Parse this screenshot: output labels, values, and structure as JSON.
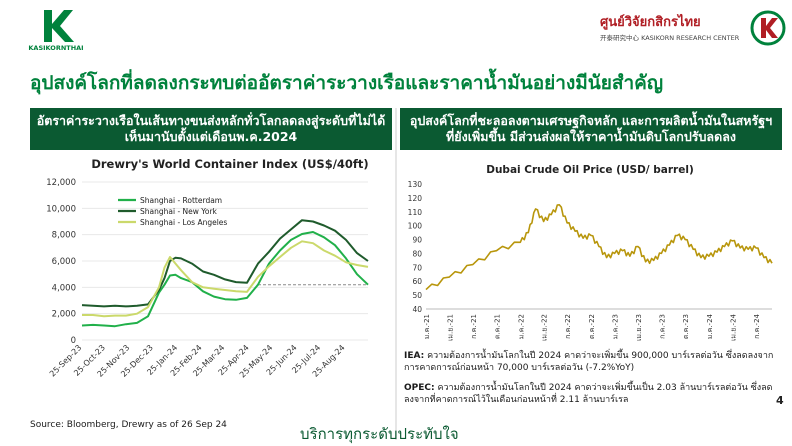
{
  "header": {
    "left_logo_text": "KASIKORNTHAI",
    "right_logo_title": "ศูนย์วิจัยกสิกรไทย",
    "right_logo_subtitle": "开泰研究中心 KASIKORN RESEARCH CENTER"
  },
  "slide": {
    "title": "อุปสงค์โลกที่ลดลงกระทบต่ออัตราค่าระวางเรือและราคาน้ำมันอย่างมีนัยสำคัญ",
    "left_header": "อัตราค่าระวางเรือในเส้นทางขนส่งหลักทั่วโลกลดลงสู่ระดับที่ไม่ได้เห็นมานับตั้งแต่เดือนพ.ค.2024",
    "right_header": "อุปสงค์โลกที่ชะลอลงตามเศรษฐกิจหลัก และการผลิตน้ำมันในสหรัฐฯ ที่ยังเพิ่มขึ้น มีส่วนส่งผลให้ราคาน้ำมันดิบโลกปรับลดลง",
    "iea_label": "IEA:",
    "iea_text": "ความต้องการน้ำมันโลกในปี 2024 คาดว่าจะเพิ่มขึ้น 900,000 บาร์เรลต่อวัน ซึ่งลดลงจากการคาดการณ์ก่อนหน้า 70,000 บาร์เรลต่อวัน (-7.2%YoY)",
    "opec_label": "OPEC:",
    "opec_text": "ความต้องการน้ำมันโลกในปี 2024 คาดว่าจะเพิ่มขึ้นเป็น 2.03 ล้านบาร์เรลต่อวัน ซึ่งลดลงจากที่คาดการณ์ไว้ในเดือนก่อนหน้าที่ 2.11 ล้านบาร์เรล",
    "source": "Source: Bloomberg, Drewry as of 26 Sep 24",
    "footer": "บริการทุกระดับประทับใจ",
    "page_number": "4"
  },
  "colors": {
    "brand_green": "#00823c",
    "header_dark_green": "#0b5a32",
    "oil_line": "#b8960c"
  },
  "chart_data": [
    {
      "type": "line",
      "title": "Drewry's World Container Index (US$/40ft)",
      "ylim": [
        0,
        12000
      ],
      "yticks": [
        0,
        2000,
        4000,
        6000,
        8000,
        10000,
        12000
      ],
      "ytick_labels": [
        "0",
        "2,000",
        "4,000",
        "6,000",
        "8,000",
        "10,000",
        "12,000"
      ],
      "x": [
        "2023-09-25",
        "2023-10-09",
        "2023-10-23",
        "2023-11-06",
        "2023-11-20",
        "2023-12-04",
        "2023-12-18",
        "2024-01-01",
        "2024-01-08",
        "2024-01-15",
        "2024-01-22",
        "2024-01-29",
        "2024-02-12",
        "2024-02-26",
        "2024-03-11",
        "2024-03-25",
        "2024-04-08",
        "2024-04-22",
        "2024-05-06",
        "2024-05-20",
        "2024-06-03",
        "2024-06-17",
        "2024-07-01",
        "2024-07-15",
        "2024-07-29",
        "2024-08-12",
        "2024-08-26",
        "2024-09-09",
        "2024-09-23"
      ],
      "xtick_labels": [
        "25-Sep-23",
        "25-Oct-23",
        "25-Nov-23",
        "25-Dec-23",
        "25-Jan-24",
        "25-Feb-24",
        "25-Mar-24",
        "25-Apr-24",
        "25-May-24",
        "25-Jun-24",
        "25-Jul-24",
        "25-Aug-24"
      ],
      "legend": "top-left",
      "series": [
        {
          "name": "Shanghai - Rotterdam",
          "color": "#21b04a",
          "values": [
            1100,
            1150,
            1100,
            1050,
            1200,
            1300,
            1800,
            3600,
            4200,
            4900,
            4950,
            4700,
            4400,
            3700,
            3300,
            3100,
            3050,
            3200,
            4200,
            5800,
            6800,
            7600,
            8050,
            8200,
            7800,
            7200,
            6200,
            5000,
            4200
          ]
        },
        {
          "name": "Shanghai - New York",
          "color": "#1f5b2c",
          "values": [
            2650,
            2600,
            2550,
            2600,
            2550,
            2600,
            2700,
            3800,
            4700,
            6000,
            6250,
            6200,
            5800,
            5200,
            4950,
            4600,
            4400,
            4350,
            5800,
            6700,
            7700,
            8400,
            9100,
            9000,
            8700,
            8300,
            7600,
            6600,
            6000
          ]
        },
        {
          "name": "Shanghai - Los Angeles",
          "color": "#cbd96b",
          "values": [
            1900,
            1900,
            1800,
            1850,
            1850,
            2000,
            2500,
            4000,
            5500,
            6300,
            5800,
            5300,
            4400,
            4000,
            3900,
            3800,
            3700,
            3650,
            4800,
            5600,
            6300,
            7000,
            7500,
            7350,
            6800,
            6400,
            5900,
            5700,
            5550
          ]
        }
      ],
      "reference_line": {
        "value": 4200,
        "style": "dashed"
      }
    },
    {
      "type": "line",
      "title": "Dubai Crude Oil Price (USD/ barrel)",
      "ylim": [
        40,
        130
      ],
      "yticks": [
        40,
        50,
        60,
        70,
        80,
        90,
        100,
        110,
        120,
        130
      ],
      "x": [
        "2021-01",
        "2021-04",
        "2021-07",
        "2021-10",
        "2022-01",
        "2022-02",
        "2022-03",
        "2022-04",
        "2022-05",
        "2022-06",
        "2022-07",
        "2022-08",
        "2022-09",
        "2022-10",
        "2022-11",
        "2022-12",
        "2023-01",
        "2023-02",
        "2023-03",
        "2023-04",
        "2023-05",
        "2023-06",
        "2023-07",
        "2023-08",
        "2023-09",
        "2023-10",
        "2023-11",
        "2023-12",
        "2024-01",
        "2024-02",
        "2024-03",
        "2024-04",
        "2024-05",
        "2024-06",
        "2024-07",
        "2024-08",
        "2024-09"
      ],
      "xtick_labels": [
        "ม.ค.-21",
        "เม.ย.-21",
        "ก.ค.-21",
        "ต.ค.-21",
        "ม.ค.-22",
        "เม.ย.-22",
        "ก.ค.-22",
        "ต.ค.-22",
        "ม.ค.-23",
        "เม.ย.-23",
        "ก.ค.-23",
        "ต.ค.-23",
        "ม.ค.-24",
        "เม.ย.-24",
        "ก.ค.-24"
      ],
      "series": [
        {
          "name": "",
          "color": "#b8960c",
          "values": [
            54,
            63,
            72,
            82,
            88,
            95,
            112,
            103,
            108,
            115,
            102,
            96,
            91,
            93,
            85,
            77,
            80,
            82,
            78,
            85,
            74,
            75,
            80,
            86,
            93,
            90,
            83,
            77,
            78,
            81,
            85,
            89,
            84,
            83,
            84,
            77,
            73
          ]
        }
      ]
    }
  ]
}
